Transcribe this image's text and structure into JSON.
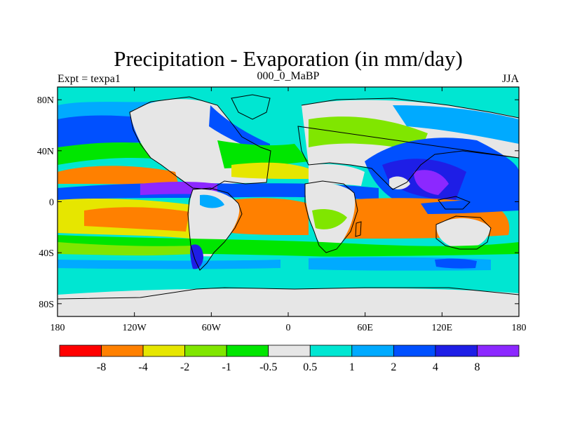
{
  "title": "Precipitation - Evaporation (in mm/day)",
  "left_label": "Expt = texpa1",
  "center_label": "000_0_MaBP",
  "right_label": "JJA",
  "lat_ticks": [
    {
      "lat": 80,
      "label": "80N"
    },
    {
      "lat": 40,
      "label": "40N"
    },
    {
      "lat": 0,
      "label": "0"
    },
    {
      "lat": -40,
      "label": "40S"
    },
    {
      "lat": -80,
      "label": "80S"
    }
  ],
  "lon_ticks": [
    {
      "lon": -180,
      "label": "180"
    },
    {
      "lon": -120,
      "label": "120W"
    },
    {
      "lon": -60,
      "label": "60W"
    },
    {
      "lon": 0,
      "label": "0"
    },
    {
      "lon": 60,
      "label": "60E"
    },
    {
      "lon": 120,
      "label": "120E"
    },
    {
      "lon": 180,
      "label": "180"
    }
  ],
  "lon_range": [
    -180,
    180
  ],
  "lat_range": [
    -90,
    90
  ],
  "colorbar": {
    "colors": [
      "#ff0000",
      "#ff8000",
      "#e6e600",
      "#80e600",
      "#00e600",
      "#e6e6e6",
      "#00e6d2",
      "#00aaff",
      "#0050ff",
      "#1e1ee6",
      "#8c28ff"
    ],
    "labels": [
      "-8",
      "-4",
      "-2",
      "-1",
      "-0.5",
      "0.5",
      "1",
      "2",
      "4",
      "8"
    ]
  },
  "legend_colors": {
    "strong_deficit": "#ff8000",
    "deficit": "#e6e600",
    "mild_deficit": "#80e600",
    "near_zero_neg": "#00e600",
    "near_zero": "#e6e6e6",
    "mild_surplus": "#00e6d2",
    "surplus": "#00aaff",
    "strong_surplus": "#0050ff",
    "very_strong_surplus": "#1e1ee6",
    "extreme_surplus": "#8c28ff"
  }
}
